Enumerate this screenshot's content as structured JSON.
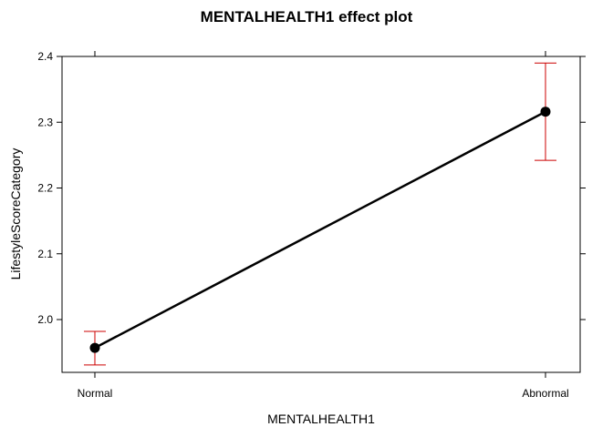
{
  "chart_data": {
    "type": "line",
    "title": "MENTALHEALTH1 effect plot",
    "xlabel": "MENTALHEALTH1",
    "ylabel": "LifestyleScoreCategory",
    "categories": [
      "Normal",
      "Abnormal"
    ],
    "series": [
      {
        "values": [
          1.957,
          2.316
        ],
        "lower": [
          1.931,
          2.242
        ],
        "upper": [
          1.982,
          2.39
        ]
      }
    ],
    "yticks": [
      "2.0",
      "2.1",
      "2.2",
      "2.3",
      "2.4"
    ],
    "ylim": [
      1.92,
      2.4
    ],
    "grid": false,
    "colors": {
      "line": "#000000",
      "errorbar": "#cc0000"
    }
  }
}
